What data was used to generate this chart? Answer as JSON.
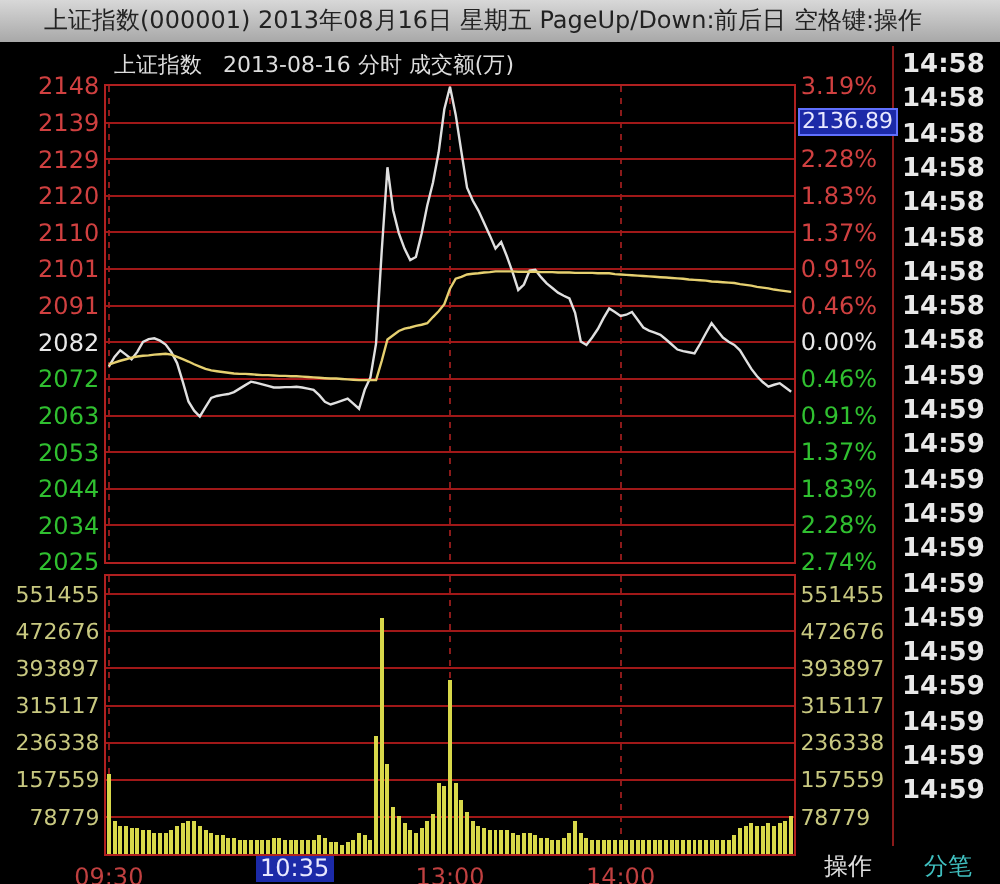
{
  "chart_data": [
    {
      "type": "line",
      "title": "上证指数(000001) 2013年08月16日 星期五 PageUp/Down:前后日 空格键:操作",
      "subtitle": "上证指数   2013-08-16 分时 成交额(万)",
      "categories": [
        null,
        null,
        null,
        null,
        null,
        null,
        null,
        null,
        null,
        null,
        null,
        null,
        null,
        null,
        null,
        null,
        null,
        null,
        null,
        null,
        null,
        null,
        null,
        null,
        null,
        null,
        null,
        null,
        null,
        null,
        null,
        null,
        null,
        null,
        null,
        null,
        null,
        null,
        null,
        null,
        null,
        null,
        null,
        null,
        null,
        null,
        null,
        null,
        null,
        null,
        null,
        null,
        null,
        null,
        null,
        null,
        null,
        null,
        null,
        null,
        null,
        null,
        null,
        null,
        null,
        null,
        null,
        null,
        null,
        null,
        null,
        null,
        null,
        null,
        null,
        null,
        null,
        null,
        null,
        null,
        null,
        null,
        null,
        null,
        null,
        null,
        null,
        null,
        null,
        null,
        null,
        null,
        null,
        null,
        null,
        null,
        null,
        null,
        null,
        null,
        null,
        null,
        null,
        null,
        null,
        null,
        null,
        null,
        null,
        null,
        null,
        null,
        null,
        null,
        null,
        null,
        null,
        null,
        null,
        null,
        null
      ],
      "ylim": [
        2025,
        2148
      ],
      "yticks": [
        2025,
        {
          "value": 2034.5,
          "label": "2034"
        },
        {
          "value": 2043.9,
          "label": "2044"
        },
        {
          "value": 2053.4,
          "label": "2053"
        },
        {
          "value": 2062.8,
          "label": "2063"
        },
        {
          "value": 2072.3,
          "label": "2072"
        },
        {
          "value": 2081.8,
          "label": "2082"
        },
        {
          "value": 2091.2,
          "label": "2091"
        },
        {
          "value": 2100.7,
          "label": "2101"
        },
        {
          "value": 2110.2,
          "label": "2110"
        },
        {
          "value": 2119.6,
          "label": "2120"
        },
        {
          "value": 2129.1,
          "label": "2129"
        },
        {
          "value": 2138.5,
          "label": "2139"
        },
        2148
      ],
      "y2lim": [
        -2.74,
        3.19
      ],
      "y2ticks": [
        {
          "value": -2.74,
          "label": "2.74%"
        },
        {
          "value": -2.28,
          "label": "2.28%"
        },
        {
          "value": -1.83,
          "label": "1.83%"
        },
        {
          "value": -1.37,
          "label": "1.37%"
        },
        {
          "value": -0.91,
          "label": "0.91%"
        },
        {
          "value": -0.46,
          "label": "0.46%"
        },
        {
          "value": 0,
          "label": "0.00%"
        },
        {
          "value": 0.46,
          "label": "0.46%"
        },
        {
          "value": 0.91,
          "label": "0.91%"
        },
        {
          "value": 1.37,
          "label": "1.37%"
        },
        {
          "value": 1.83,
          "label": "1.83%"
        },
        {
          "value": 2.28,
          "label": "2.28%"
        },
        {
          "value": 2.74,
          "label": null
        },
        {
          "value": 3.19,
          "label": "3.19%"
        }
      ],
      "tick_labels": "y",
      "grid": true,
      "series": [
        {
          "color": "#e0e0e0",
          "values": [
            2075.5,
            2078,
            2079.7,
            2078.6,
            2077.4,
            2079.3,
            2081.9,
            2082.6,
            2082.8,
            2082.2,
            2081.2,
            2079.2,
            2076.4,
            2071.6,
            2066.5,
            2064.1,
            2062.6,
            2065,
            2067.4,
            2067.9,
            2068.2,
            2068.4,
            2068.9,
            2069.8,
            2070.7,
            2071.6,
            2071.3,
            2070.9,
            2070.5,
            2070.1,
            2070.1,
            2070.2,
            2070.2,
            2070.3,
            2070.1,
            2069.8,
            2069.5,
            2068.1,
            2066.4,
            2065.7,
            2066.2,
            2066.7,
            2067.2,
            2065.9,
            2064.6,
            2069.5,
            2072.7,
            2081.5,
            2105.5,
            2127,
            2115.9,
            2110,
            2106,
            2103,
            2103.8,
            2109.8,
            2117.1,
            2123,
            2130.8,
            2142,
            2147.8,
            2140.6,
            2131,
            2121.7,
            2118.4,
            2115.8,
            2112.6,
            2109.4,
            2106,
            2107.7,
            2104,
            2099.9,
            2095.3,
            2096.7,
            2100.3,
            2100.5,
            2098.6,
            2097,
            2095.8,
            2094.6,
            2093.8,
            2093.1,
            2089.4,
            2082,
            2081.1,
            2083,
            2085.2,
            2088,
            2090.5,
            2089.6,
            2088.6,
            2088.9,
            2089.6,
            2087.6,
            2085.6,
            2084.8,
            2084.3,
            2083.7,
            2082.5,
            2081.2,
            2079.9,
            2079.5,
            2079.2,
            2078.9,
            2081.4,
            2084.1,
            2086.7,
            2084.8,
            2083,
            2081.9,
            2081.1,
            2079.7,
            2077.3,
            2074.9,
            2073,
            2071.5,
            2070.3,
            2070.8,
            2071.2,
            2070.1,
            2069
          ]
        },
        {
          "color": "#e6d070",
          "values": [
            2076,
            2076.5,
            2077,
            2077.4,
            2077.8,
            2078.1,
            2078.3,
            2078.4,
            2078.6,
            2078.7,
            2078.8,
            2078.6,
            2078,
            2077.4,
            2076.8,
            2076.1,
            2075.5,
            2074.9,
            2074.5,
            2074.3,
            2074.1,
            2073.9,
            2073.7,
            2073.6,
            2073.6,
            2073.5,
            2073.4,
            2073.3,
            2073.3,
            2073.2,
            2073.1,
            2073.1,
            2073,
            2073,
            2072.9,
            2072.8,
            2072.7,
            2072.6,
            2072.5,
            2072.4,
            2072.4,
            2072.3,
            2072.2,
            2072.1,
            2072,
            2072,
            2072,
            2072,
            2077,
            2082.5,
            2083.6,
            2084.7,
            2085.3,
            2085.6,
            2086,
            2086.3,
            2086.7,
            2088.3,
            2089.8,
            2091.6,
            2095.6,
            2098.2,
            2098.7,
            2099.3,
            2099.5,
            2099.6,
            2099.8,
            2099.9,
            2100.1,
            2100.1,
            2100.1,
            2100.1,
            2100,
            2100,
            2100,
            2100,
            2099.9,
            2099.9,
            2099.9,
            2099.8,
            2099.8,
            2099.8,
            2099.7,
            2099.7,
            2099.7,
            2099.7,
            2099.6,
            2099.6,
            2099.6,
            2099.4,
            2099.3,
            2099.2,
            2099.1,
            2099,
            2098.9,
            2098.8,
            2098.7,
            2098.6,
            2098.5,
            2098.4,
            2098.3,
            2098.2,
            2098,
            2097.9,
            2097.8,
            2097.7,
            2097.5,
            2097.4,
            2097.3,
            2097.2,
            2097.1,
            2096.8,
            2096.6,
            2096.4,
            2096.1,
            2095.9,
            2095.7,
            2095.4,
            2095.2,
            2095,
            2094.8
          ]
        }
      ],
      "annotations": [
        "2136.89",
        "14:58",
        "14:58",
        "14:58",
        "14:58",
        "14:58",
        "14:58",
        "14:58",
        "14:58",
        "14:58",
        "14:59",
        "14:59",
        "14:59",
        "14:59",
        "14:59",
        "14:59",
        "14:59",
        "14:59",
        "14:59",
        "14:59",
        "14:59",
        "14:59",
        "14:59"
      ]
    },
    {
      "type": "bar",
      "categories": [
        "09:30",
        null,
        null,
        null,
        null,
        null,
        null,
        null,
        null,
        null,
        null,
        null,
        null,
        null,
        null,
        null,
        null,
        null,
        null,
        null,
        null,
        null,
        null,
        null,
        null,
        null,
        null,
        null,
        null,
        null,
        null,
        null,
        null,
        null,
        null,
        null,
        null,
        null,
        null,
        null,
        null,
        null,
        null,
        null,
        null,
        null,
        null,
        null,
        null,
        null,
        null,
        null,
        null,
        null,
        null,
        null,
        null,
        null,
        null,
        null,
        "13:00",
        null,
        null,
        null,
        null,
        null,
        null,
        null,
        null,
        null,
        null,
        null,
        null,
        null,
        null,
        null,
        null,
        null,
        null,
        null,
        null,
        null,
        null,
        null,
        null,
        null,
        null,
        null,
        null,
        null,
        "14:00",
        null,
        null,
        null,
        null,
        null,
        null,
        null,
        null,
        null,
        null,
        null,
        null,
        null,
        null,
        null,
        null,
        null,
        null,
        null,
        null,
        null,
        null,
        null,
        null,
        null,
        null,
        null,
        null,
        null,
        null
      ],
      "ylim": [
        0,
        590000
      ],
      "yticks": [
        78779,
        157559,
        236338,
        315117,
        393897,
        472676,
        551455
      ],
      "y2lim": [
        0,
        590000
      ],
      "y2ticks": [
        78779,
        157559,
        236338,
        315117,
        393897,
        472676,
        551455
      ],
      "grid": true,
      "series": [
        {
          "color": "#d8d84a",
          "values": [
            170000,
            70000,
            60000,
            60000,
            55000,
            55000,
            50000,
            50000,
            45000,
            45000,
            45000,
            50000,
            60000,
            65000,
            70000,
            70000,
            60000,
            50000,
            45000,
            40000,
            40000,
            35000,
            35000,
            30000,
            30000,
            30000,
            30000,
            30000,
            30000,
            35000,
            35000,
            30000,
            30000,
            30000,
            30000,
            30000,
            30000,
            40000,
            35000,
            25000,
            25000,
            20000,
            25000,
            30000,
            45000,
            40000,
            30000,
            250000,
            500000,
            190000,
            100000,
            80000,
            65000,
            50000,
            45000,
            55000,
            70000,
            85000,
            150000,
            145000,
            370000,
            150000,
            115000,
            90000,
            70000,
            60000,
            55000,
            50000,
            50000,
            50000,
            50000,
            45000,
            40000,
            45000,
            45000,
            40000,
            35000,
            35000,
            30000,
            30000,
            35000,
            45000,
            70000,
            45000,
            35000,
            30000,
            30000,
            30000,
            30000,
            30000,
            30000,
            30000,
            30000,
            30000,
            30000,
            30000,
            30000,
            30000,
            30000,
            30000,
            30000,
            30000,
            30000,
            30000,
            30000,
            30000,
            30000,
            30000,
            30000,
            30000,
            40000,
            55000,
            60000,
            65000,
            60000,
            60000,
            65000,
            60000,
            65000,
            70000,
            80000
          ]
        }
      ],
      "annotations": [
        "10:35",
        "操作",
        "分笔"
      ]
    }
  ]
}
